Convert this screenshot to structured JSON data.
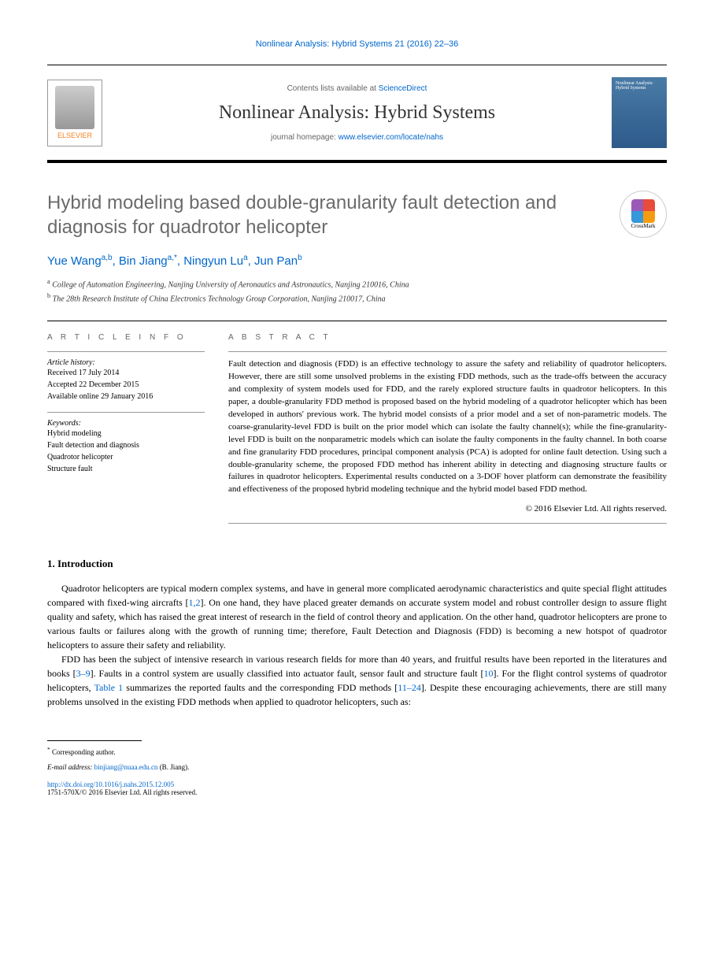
{
  "header": {
    "reference": "Nonlinear Analysis: Hybrid Systems 21 (2016) 22–36"
  },
  "masthead": {
    "contents_prefix": "Contents lists available at ",
    "contents_link": "ScienceDirect",
    "journal_name": "Nonlinear Analysis: Hybrid Systems",
    "homepage_prefix": "journal homepage: ",
    "homepage_url": "www.elsevier.com/locate/nahs",
    "cover_title": "Nonlinear Analysis:",
    "cover_subtitle": "Hybrid Systems",
    "publisher": "ELSEVIER"
  },
  "article": {
    "title": "Hybrid modeling based double-granularity fault detection and diagnosis for quadrotor helicopter",
    "crossmark_label": "CrossMark",
    "authors_html": "Yue Wang",
    "author1": "Yue Wang",
    "author1_sup": "a,b",
    "author2": "Bin Jiang",
    "author2_sup": "a,*",
    "author3": "Ningyun Lu",
    "author3_sup": "a",
    "author4": "Jun Pan",
    "author4_sup": "b",
    "affiliation_a": "College of Automation Engineering, Nanjing University of Aeronautics and Astronautics, Nanjing 210016, China",
    "affiliation_b": "The 28th Research Institute of China Electronics Technology Group Corporation, Nanjing 210017, China"
  },
  "info": {
    "heading": "A R T I C L E   I N F O",
    "history_label": "Article history:",
    "received": "Received 17 July 2014",
    "accepted": "Accepted 22 December 2015",
    "online": "Available online 29 January 2016",
    "keywords_label": "Keywords:",
    "kw1": "Hybrid modeling",
    "kw2": "Fault detection and diagnosis",
    "kw3": "Quadrotor helicopter",
    "kw4": "Structure fault"
  },
  "abstract": {
    "heading": "A B S T R A C T",
    "text": "Fault detection and diagnosis (FDD) is an effective technology to assure the safety and reliability of quadrotor helicopters. However, there are still some unsolved problems in the existing FDD methods, such as the trade-offs between the accuracy and complexity of system models used for FDD, and the rarely explored structure faults in quadrotor helicopters. In this paper, a double-granularity FDD method is proposed based on the hybrid modeling of a quadrotor helicopter which has been developed in authors' previous work. The hybrid model consists of a prior model and a set of non-parametric models. The coarse-granularity-level FDD is built on the prior model which can isolate the faulty channel(s); while the fine-granularity-level FDD is built on the nonparametric models which can isolate the faulty components in the faulty channel. In both coarse and fine granularity FDD procedures, principal component analysis (PCA) is adopted for online fault detection. Using such a double-granularity scheme, the proposed FDD method has inherent ability in detecting and diagnosing structure faults or failures in quadrotor helicopters. Experimental results conducted on a 3-DOF hover platform can demonstrate the feasibility and effectiveness of the proposed hybrid modeling technique and the hybrid model based FDD method.",
    "copyright": "© 2016 Elsevier Ltd. All rights reserved."
  },
  "section1": {
    "heading": "1.  Introduction",
    "para1_pre": "Quadrotor helicopters are typical modern complex systems, and have in general more complicated aerodynamic characteristics and quite special flight attitudes compared with fixed-wing aircrafts [",
    "para1_ref1": "1,2",
    "para1_post": "]. On one hand, they have placed greater demands on accurate system model and robust controller design to assure flight quality and safety, which has raised the great interest of research in the field of control theory and application. On the other hand, quadrotor helicopters are prone to various faults or failures along with the growth of running time; therefore, Fault Detection and Diagnosis (FDD) is becoming a new hotspot of quadrotor helicopters to assure their safety and reliability.",
    "para2_pre": "FDD has been the subject of intensive research in various research fields for more than 40 years, and fruitful results have been reported in the literatures and books [",
    "para2_ref1": "3–9",
    "para2_mid1": "]. Faults in a control system are usually classified into actuator fault, sensor fault and structure fault [",
    "para2_ref2": "10",
    "para2_mid2": "]. For the flight control systems of quadrotor helicopters, ",
    "para2_table": "Table 1",
    "para2_mid3": " summarizes the reported faults and the corresponding FDD methods [",
    "para2_ref3": "11–24",
    "para2_post": "]. Despite these encouraging achievements, there are still many problems unsolved in the existing FDD methods when applied to quadrotor helicopters, such as:"
  },
  "footer": {
    "corresponding": "Corresponding author.",
    "email_label": "E-mail address:",
    "email": "binjiang@nuaa.edu.cn",
    "email_author": "(B. Jiang).",
    "doi": "http://dx.doi.org/10.1016/j.nahs.2015.12.005",
    "issn_copyright": "1751-570X/© 2016 Elsevier Ltd. All rights reserved."
  }
}
